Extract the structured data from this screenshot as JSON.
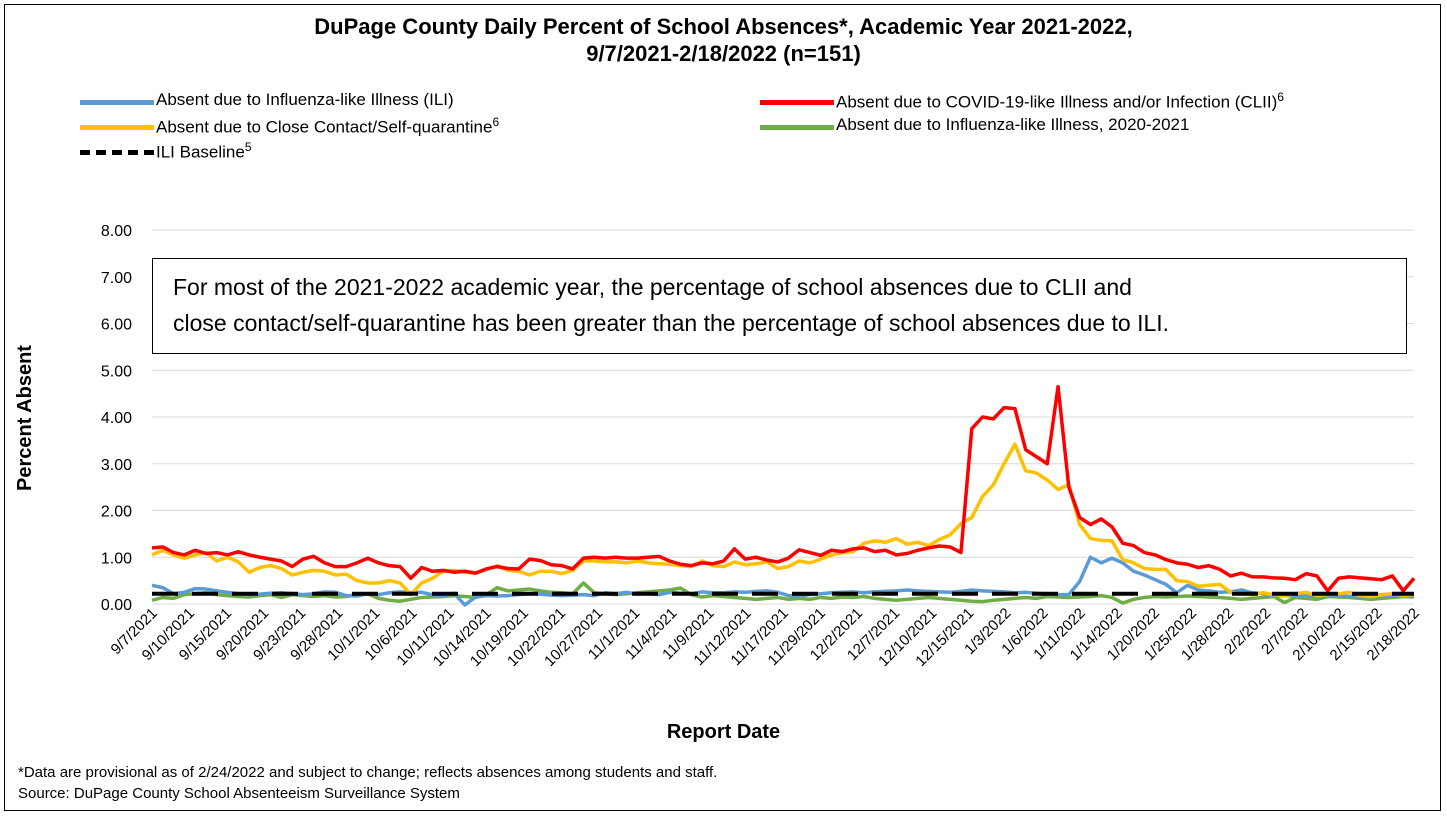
{
  "title_line1": "DuPage County Daily Percent of School Absences*, Academic Year 2021-2022,",
  "title_line2": "9/7/2021-2/18/2022 (n=151)",
  "legend": [
    {
      "label": "Absent due to Influenza-like Illness (ILI)",
      "sup": "",
      "color": "#5b9bd5",
      "style": "solid"
    },
    {
      "label": "Absent due to COVID-19-like Illness and/or Infection (CLII)",
      "sup": "6",
      "color": "#ff0000",
      "style": "solid"
    },
    {
      "label": "Absent due to Close Contact/Self-quarantine",
      "sup": "6",
      "color": "#ffc000",
      "style": "solid"
    },
    {
      "label": "Absent due to Influenza-like Illness, 2020-2021",
      "sup": "",
      "color": "#70ad47",
      "style": "solid"
    },
    {
      "label": "ILI Baseline",
      "sup": "5",
      "color": "#000000",
      "style": "dashed"
    }
  ],
  "annotation": {
    "line1": "For most of the 2021-2022 academic year, the percentage of school absences due to CLII and",
    "line2": "close contact/self-quarantine has been greater than the percentage of school absences due to ILI."
  },
  "footnote1": "*Data are provisional as of 2/24/2022 and subject to change; reflects absences among students and staff.",
  "footnote2": "Source: DuPage County School Absenteeism Surveillance System",
  "chart_data": {
    "type": "line",
    "xlabel": "Report Date",
    "ylabel": "Percent Absent",
    "ylim": [
      0,
      8
    ],
    "yticks": [
      "0.00",
      "1.00",
      "2.00",
      "3.00",
      "4.00",
      "5.00",
      "6.00",
      "7.00",
      "8.00"
    ],
    "grid": true,
    "legend_position": "top",
    "n_points": 118,
    "x_tick_labels": [
      "9/7/2021",
      "9/10/2021",
      "9/15/2021",
      "9/20/2021",
      "9/23/2021",
      "9/28/2021",
      "10/1/2021",
      "10/6/2021",
      "10/11/2021",
      "10/14/2021",
      "10/19/2021",
      "10/22/2021",
      "10/27/2021",
      "11/1/2021",
      "11/4/2021",
      "11/9/2021",
      "11/12/2021",
      "11/17/2021",
      "11/29/2021",
      "12/2/2021",
      "12/7/2021",
      "12/10/2021",
      "12/15/2021",
      "1/3/2022",
      "1/6/2022",
      "1/11/2022",
      "1/14/2022",
      "1/20/2022",
      "1/25/2022",
      "1/28/2022",
      "2/2/2022",
      "2/7/2022",
      "2/10/2022",
      "2/15/2022",
      "2/18/2022"
    ],
    "series": [
      {
        "name": "Absent due to Influenza-like Illness (ILI)",
        "color": "#5b9bd5",
        "values": [
          0.4,
          0.35,
          0.22,
          0.25,
          0.33,
          0.32,
          0.28,
          0.25,
          0.22,
          0.2,
          0.21,
          0.23,
          0.24,
          0.22,
          0.2,
          0.22,
          0.26,
          0.25,
          0.18,
          0.17,
          0.22,
          0.2,
          0.24,
          0.26,
          0.24,
          0.25,
          0.2,
          0.18,
          0.23,
          -0.02,
          0.15,
          0.18,
          0.17,
          0.18,
          0.2,
          0.22,
          0.21,
          0.19,
          0.18,
          0.19,
          0.2,
          0.18,
          0.24,
          0.22,
          0.25,
          0.21,
          0.22,
          0.2,
          0.25,
          0.23,
          0.22,
          0.26,
          0.24,
          0.24,
          0.26,
          0.25,
          0.27,
          0.28,
          0.25,
          0.18,
          0.17,
          0.2,
          0.22,
          0.24,
          0.25,
          0.26,
          0.24,
          0.26,
          0.27,
          0.28,
          0.3,
          0.28,
          0.27,
          0.26,
          0.25,
          0.27,
          0.3,
          0.28,
          0.27,
          0.26,
          0.24,
          0.25,
          0.23,
          0.22,
          0.2,
          0.2,
          0.48,
          1.0,
          0.88,
          0.98,
          0.88,
          0.7,
          0.62,
          0.52,
          0.42,
          0.24,
          0.4,
          0.3,
          0.28,
          0.25,
          0.26,
          0.3,
          0.24,
          0.22,
          0.18,
          0.18,
          0.17,
          0.18,
          0.16,
          0.17,
          0.18,
          0.16,
          0.15,
          0.18,
          0.2,
          0.18,
          0.17,
          0.18
        ]
      },
      {
        "name": "Absent due to COVID-19-like Illness and/or Infection (CLII)",
        "color": "#ff0000",
        "values": [
          1.2,
          1.22,
          1.1,
          1.05,
          1.15,
          1.08,
          1.1,
          1.05,
          1.12,
          1.05,
          1.0,
          0.96,
          0.92,
          0.8,
          0.96,
          1.02,
          0.88,
          0.8,
          0.8,
          0.88,
          0.98,
          0.88,
          0.82,
          0.8,
          0.55,
          0.78,
          0.7,
          0.72,
          0.68,
          0.7,
          0.66,
          0.75,
          0.8,
          0.76,
          0.75,
          0.96,
          0.93,
          0.84,
          0.82,
          0.75,
          0.98,
          1.0,
          0.98,
          1.0,
          0.98,
          0.98,
          1.0,
          1.02,
          0.92,
          0.85,
          0.82,
          0.88,
          0.86,
          0.92,
          1.18,
          0.96,
          1.0,
          0.94,
          0.9,
          0.98,
          1.16,
          1.1,
          1.04,
          1.15,
          1.12,
          1.18,
          1.2,
          1.12,
          1.15,
          1.05,
          1.08,
          1.15,
          1.2,
          1.24,
          1.22,
          1.1,
          3.75,
          4.0,
          3.96,
          4.2,
          4.18,
          3.3,
          3.15,
          3.0,
          4.65,
          2.5,
          1.85,
          1.7,
          1.82,
          1.65,
          1.3,
          1.25,
          1.1,
          1.05,
          0.95,
          0.88,
          0.85,
          0.78,
          0.82,
          0.74,
          0.6,
          0.66,
          0.58,
          0.58,
          0.56,
          0.55,
          0.52,
          0.65,
          0.6,
          0.28,
          0.55,
          0.58,
          0.56,
          0.54,
          0.52,
          0.6,
          0.28,
          0.55
        ]
      },
      {
        "name": "Absent due to Close Contact/Self-quarantine",
        "color": "#ffc000",
        "values": [
          1.05,
          1.15,
          1.05,
          0.98,
          1.05,
          1.1,
          0.92,
          1.0,
          0.9,
          0.68,
          0.78,
          0.82,
          0.76,
          0.62,
          0.68,
          0.72,
          0.7,
          0.62,
          0.64,
          0.5,
          0.45,
          0.45,
          0.5,
          0.45,
          0.2,
          0.45,
          0.55,
          0.7,
          0.72,
          0.68,
          0.66,
          0.74,
          0.82,
          0.72,
          0.7,
          0.62,
          0.7,
          0.7,
          0.65,
          0.72,
          0.92,
          0.92,
          0.9,
          0.9,
          0.88,
          0.92,
          0.88,
          0.86,
          0.85,
          0.82,
          0.8,
          0.92,
          0.82,
          0.8,
          0.9,
          0.84,
          0.86,
          0.9,
          0.76,
          0.8,
          0.92,
          0.88,
          0.96,
          1.05,
          1.1,
          1.12,
          1.3,
          1.35,
          1.32,
          1.4,
          1.28,
          1.32,
          1.25,
          1.38,
          1.48,
          1.72,
          1.85,
          2.3,
          2.55,
          3.0,
          3.42,
          2.85,
          2.8,
          2.65,
          2.45,
          2.55,
          1.7,
          1.4,
          1.36,
          1.35,
          0.95,
          0.88,
          0.76,
          0.74,
          0.74,
          0.5,
          0.48,
          0.38,
          0.4,
          0.42,
          0.25,
          0.22,
          0.2,
          0.24,
          0.2,
          0.18,
          0.22,
          0.25,
          0.18,
          0.2,
          0.22,
          0.25,
          0.18,
          0.16,
          0.2,
          0.22,
          0.18,
          0.2
        ]
      },
      {
        "name": "Absent due to Influenza-like Illness, 2020-2021",
        "color": "#70ad47",
        "values": [
          0.08,
          0.14,
          0.12,
          0.2,
          0.22,
          0.24,
          0.2,
          0.18,
          0.16,
          0.15,
          0.18,
          0.2,
          0.14,
          0.2,
          0.18,
          0.16,
          0.18,
          0.15,
          0.16,
          0.2,
          0.22,
          0.12,
          0.08,
          0.06,
          0.1,
          0.14,
          0.15,
          0.16,
          0.18,
          0.16,
          0.14,
          0.2,
          0.35,
          0.28,
          0.3,
          0.32,
          0.28,
          0.25,
          0.24,
          0.22,
          0.45,
          0.24,
          0.22,
          0.2,
          0.22,
          0.24,
          0.26,
          0.28,
          0.3,
          0.34,
          0.2,
          0.15,
          0.18,
          0.16,
          0.14,
          0.12,
          0.1,
          0.12,
          0.14,
          0.1,
          0.12,
          0.1,
          0.14,
          0.12,
          0.15,
          0.14,
          0.16,
          0.12,
          0.1,
          0.08,
          0.1,
          0.12,
          0.14,
          0.12,
          0.1,
          0.08,
          0.06,
          0.05,
          0.08,
          0.1,
          0.12,
          0.14,
          0.12,
          0.16,
          0.15,
          0.14,
          0.15,
          0.16,
          0.18,
          0.14,
          0.02,
          0.1,
          0.14,
          0.16,
          0.15,
          0.16,
          0.17,
          0.16,
          0.15,
          0.14,
          0.12,
          0.1,
          0.12,
          0.14,
          0.16,
          0.03,
          0.14,
          0.12,
          0.1,
          0.16,
          0.15,
          0.14,
          0.12,
          0.1,
          0.12,
          0.14,
          0.16,
          0.15
        ]
      },
      {
        "name": "ILI Baseline",
        "color": "#000000",
        "dashed": true,
        "constant": 0.22
      }
    ]
  }
}
